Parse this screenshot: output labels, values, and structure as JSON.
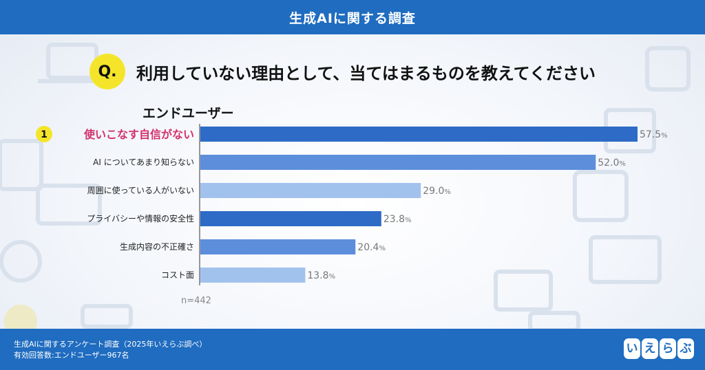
{
  "header": {
    "title": "生成AIに関する調査"
  },
  "question": {
    "badge": "Q.",
    "text": "利用していない理由として、当てはまるものを教えてください"
  },
  "chart_data": {
    "type": "bar",
    "orientation": "horizontal",
    "group_label": "エンドユーザー",
    "rank_badge": "1",
    "categories": [
      "使いこなす自信がない",
      "AI についてあまり知らない",
      "周囲に使っている人がいない",
      "プライバシーや情報の安全性",
      "生成内容の不正確さ",
      "コスト面"
    ],
    "values": [
      57.5,
      52.0,
      29.0,
      23.8,
      20.4,
      13.8
    ],
    "value_labels": [
      "57.5",
      "52.0",
      "29.0",
      "23.8",
      "20.4",
      "13.8"
    ],
    "unit": "%",
    "bar_colors": [
      "#2d6bc6",
      "#5c8edb",
      "#a2c2ee",
      "#2d6bc6",
      "#5c8edb",
      "#a2c2ee"
    ],
    "highlight_color": "#d3306a",
    "xlim": [
      0,
      57.5
    ],
    "note": "n=442"
  },
  "footer": {
    "source_line": "生成AIに関するアンケート調査（2025年いえらぶ調べ）",
    "respondents_line": "有効回答数:エンドユーザー967名"
  },
  "logo": {
    "chars": [
      "い",
      "え",
      "ら",
      "ぶ"
    ]
  },
  "colors": {
    "brand": "#1f6cc0",
    "badge_yellow": "#f5e52a"
  }
}
